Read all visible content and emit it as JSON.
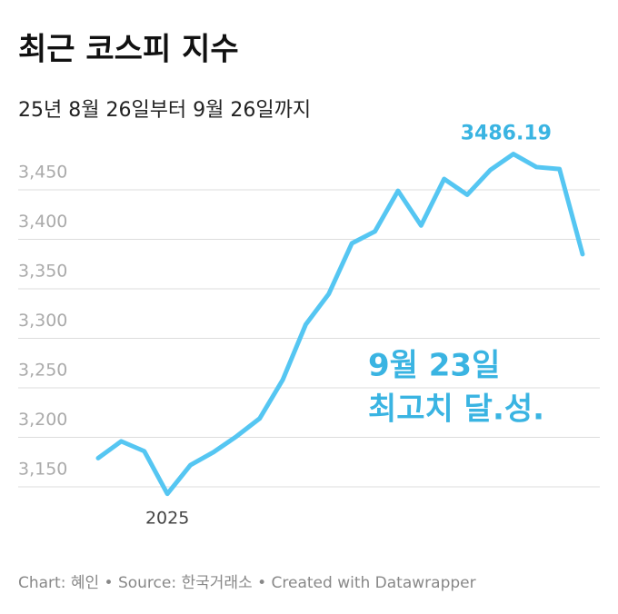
{
  "chart_data": {
    "type": "line",
    "title": "최근 코스피 지수",
    "subtitle": "25년 8월 26일부터 9월 26일까지",
    "categories": [
      null,
      null,
      null,
      "2025",
      null,
      null,
      null,
      null,
      null,
      null,
      null,
      null,
      null,
      null,
      null,
      null,
      null,
      null,
      null,
      null,
      null,
      null
    ],
    "series": [
      {
        "name": "코스피",
        "color": "#55c6f2",
        "values": [
          3179,
          3196,
          3186,
          3143,
          3172,
          3185,
          3201,
          3219,
          3258,
          3314,
          3345,
          3396,
          3408,
          3449,
          3414,
          3461,
          3445,
          3470,
          3486.19,
          3473,
          3471,
          3385
        ]
      }
    ],
    "ylim": [
      3130,
      3500
    ],
    "yticks": [
      {
        "value": 3150,
        "label": "3,150"
      },
      {
        "value": 3200,
        "label": "3,200"
      },
      {
        "value": 3250,
        "label": "3,250"
      },
      {
        "value": 3300,
        "label": "3,300"
      },
      {
        "value": 3350,
        "label": "3,350"
      },
      {
        "value": 3400,
        "label": "3,400"
      },
      {
        "value": 3450,
        "label": "3,450"
      }
    ],
    "grid": true,
    "annotations": [
      "9월 23일",
      "최고치 달.성."
    ],
    "footer": "Chart: 혜인 • Source: 한국거래소 • Created with Datawrapper"
  }
}
